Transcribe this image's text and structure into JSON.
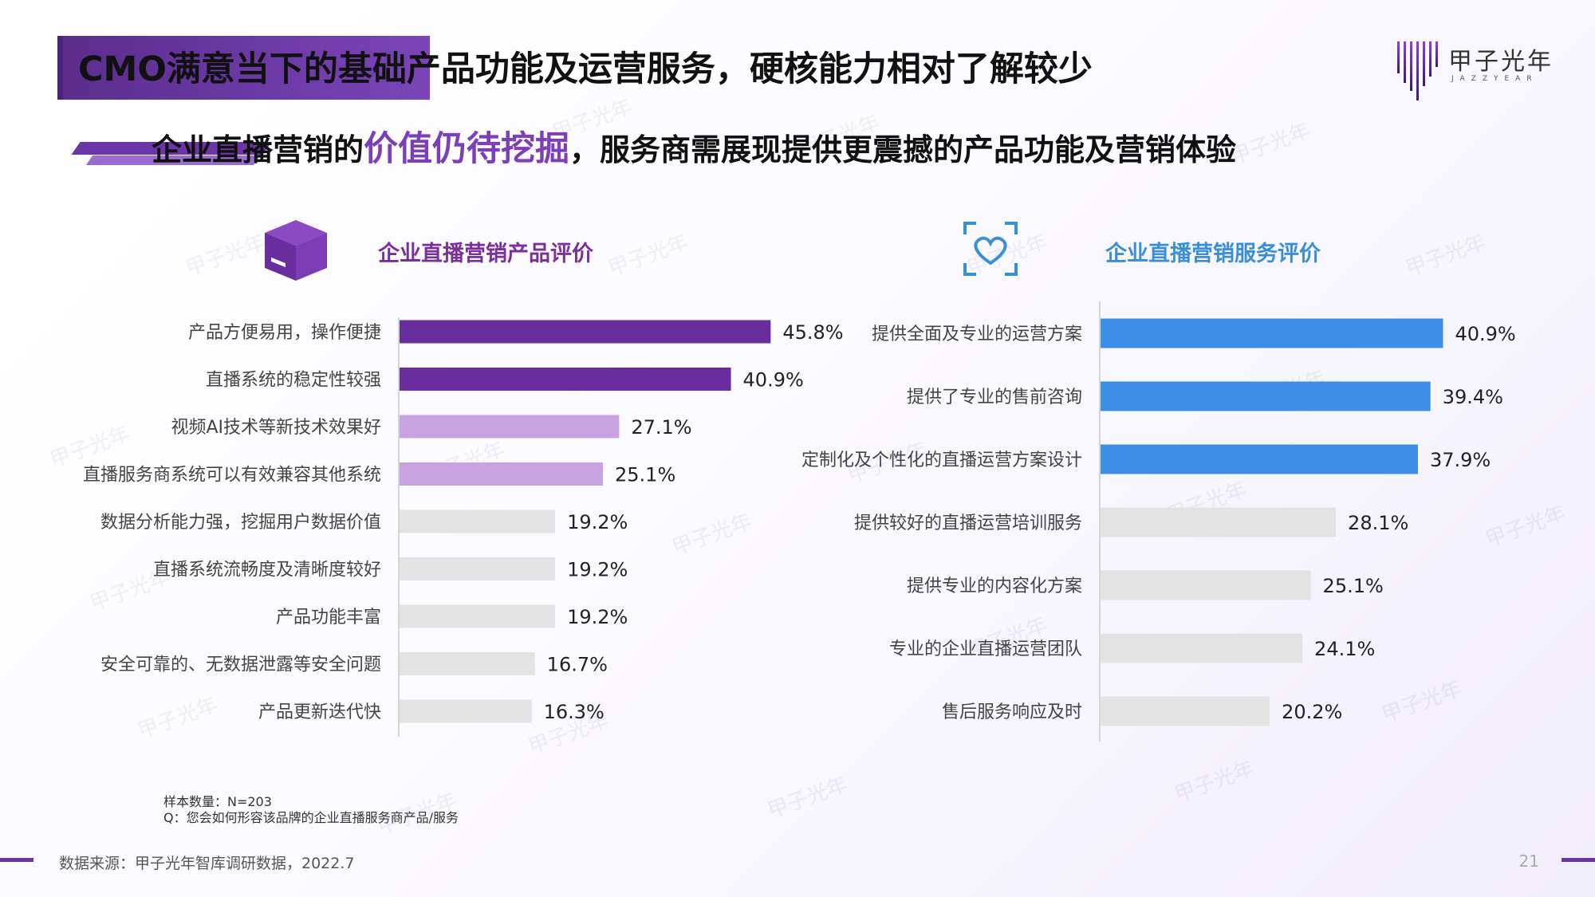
{
  "page": {
    "title": "CMO满意当下的基础产品功能及运营服务，硬核能力相对了解较少",
    "subtitle_prefix": "企业直播营销的",
    "subtitle_highlight": "价值仍待挖掘",
    "subtitle_suffix": "，服务商需展现提供更震撼的产品功能及营销体验",
    "logo_text": "甲子光年",
    "logo_sub": "JAZZYEAR",
    "watermark_text": "甲子光年",
    "note_sample": "样本数量：N=203",
    "note_question": "Q：您会如何形容该品牌的企业直播服务商产品/服务",
    "source": "数据来源：甲子光年智库调研数据，2022.7",
    "page_number": "21"
  },
  "icons": {
    "product": "box-icon",
    "service": "heart-scan-icon",
    "logo": "jazzyear-logo-icon"
  },
  "colors": {
    "dark_purple": "#6a2d9e",
    "light_purple": "#c9a3e0",
    "blue": "#3c8ee6",
    "gray": "#e3e3e3",
    "product_title": "#7b2f9a",
    "service_title": "#3a8fd9"
  },
  "chart_data": [
    {
      "type": "bar",
      "orientation": "horizontal",
      "title": "企业直播营销产品评价",
      "categories": [
        "产品方便易用，操作便捷",
        "直播系统的稳定性较强",
        "视频AI技术等新技术效果好",
        "直播服务商系统可以有效兼容其他系统",
        "数据分析能力强，挖掘用户数据价值",
        "直播系统流畅度及清晰度较好",
        "产品功能丰富",
        "安全可靠的、无数据泄露等安全问题",
        "产品更新迭代快"
      ],
      "values": [
        45.8,
        40.9,
        27.1,
        25.1,
        19.2,
        19.2,
        19.2,
        16.7,
        16.3
      ],
      "value_labels": [
        "45.8%",
        "40.9%",
        "27.1%",
        "25.1%",
        "19.2%",
        "19.2%",
        "19.2%",
        "16.7%",
        "16.3%"
      ],
      "bar_colors": [
        "#6a2d9e",
        "#6a2d9e",
        "#c9a3e0",
        "#c9a3e0",
        "#e3e3e3",
        "#e3e3e3",
        "#e3e3e3",
        "#e3e3e3",
        "#e3e3e3"
      ],
      "unit": "%",
      "xlim": [
        0,
        50
      ],
      "grid": false
    },
    {
      "type": "bar",
      "orientation": "horizontal",
      "title": "企业直播营销服务评价",
      "categories": [
        "提供全面及专业的运营方案",
        "提供了专业的售前咨询",
        "定制化及个性化的直播运营方案设计",
        "提供较好的直播运营培训服务",
        "提供专业的内容化方案",
        "专业的企业直播运营团队",
        "售后服务响应及时"
      ],
      "values": [
        40.9,
        39.4,
        37.9,
        28.1,
        25.1,
        24.1,
        20.2
      ],
      "value_labels": [
        "40.9%",
        "39.4%",
        "37.9%",
        "28.1%",
        "25.1%",
        "24.1%",
        "20.2%"
      ],
      "bar_colors": [
        "#3c8ee6",
        "#3c8ee6",
        "#3c8ee6",
        "#e3e3e3",
        "#e3e3e3",
        "#e3e3e3",
        "#e3e3e3"
      ],
      "unit": "%",
      "xlim": [
        0,
        50
      ],
      "grid": false
    }
  ]
}
